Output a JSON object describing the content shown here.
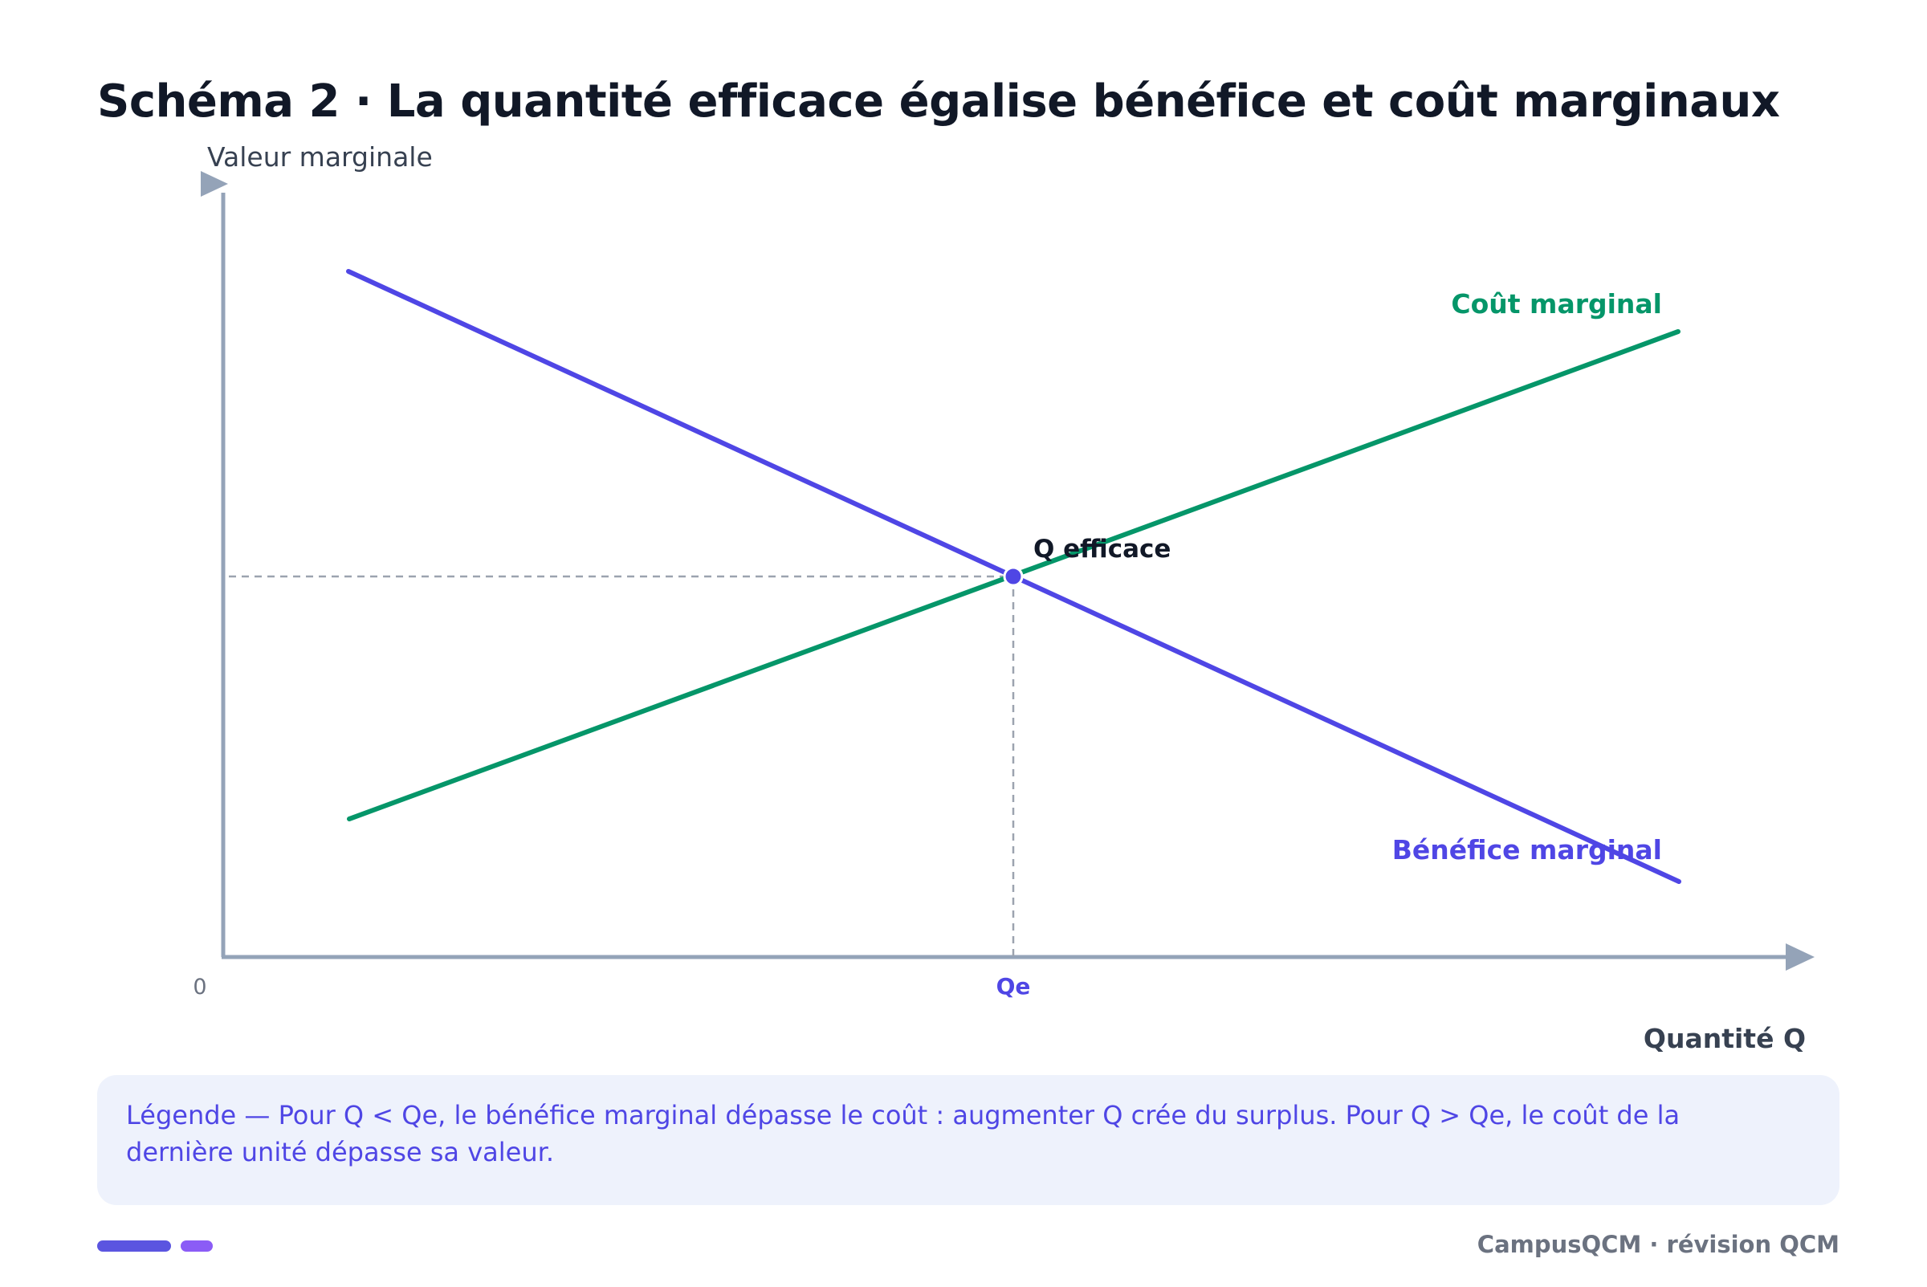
{
  "title": "Schéma 2 · La quantité efficace égalise bénéfice et coût marginaux",
  "diagram": {
    "y_axis_label": "Valeur marginale",
    "x_axis_label": "Quantité Q",
    "origin_label": "0",
    "x_marker_label": "Qe",
    "point_label": "Q efficace",
    "curves": {
      "marginal_cost": {
        "label": "Coût marginal",
        "color": "#059669"
      },
      "marginal_benefit": {
        "label": "Bénéfice marginal",
        "color": "#4f46e5"
      }
    },
    "axis_color": "#94a3b8",
    "guide_color": "#9ca3af"
  },
  "legend": {
    "text": "Légende — Pour Q < Qe, le bénéfice marginal dépasse le coût : augmenter Q crée du surplus. Pour Q > Qe, le coût de la dernière unité dépasse sa valeur."
  },
  "footer": {
    "brand": "CampusQCM · révision QCM",
    "accent_colors": [
      "#5b55e0",
      "#8b5cf6"
    ]
  }
}
